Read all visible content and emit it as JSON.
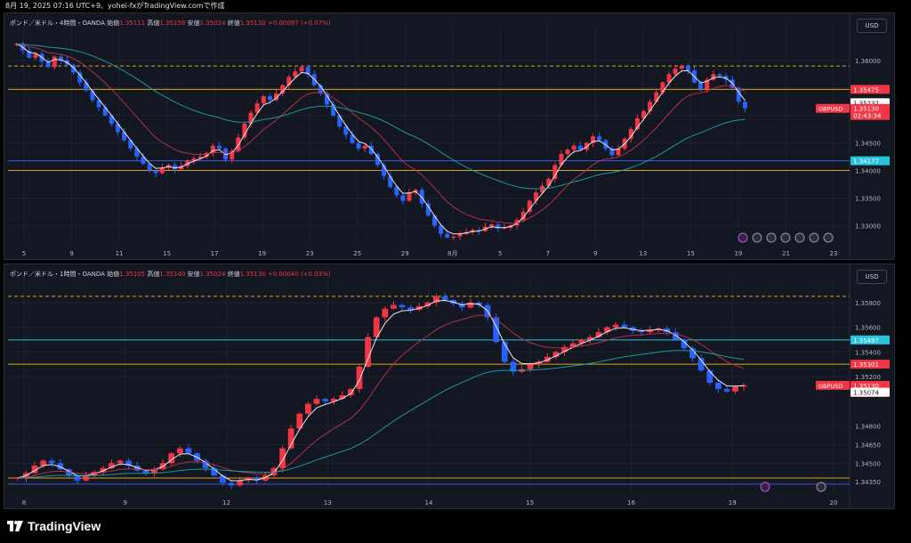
{
  "header": {
    "text": "8月 19, 2025 07:16 UTC+9、yohei-fxがTradingView.comで作成"
  },
  "footer": {
    "brand": "TradingView"
  },
  "colors": {
    "bg": "#131722",
    "up": "#f23645",
    "down": "#2962ff",
    "grid": "#1e222d",
    "ema_fast": "#ffffff",
    "ema_mid": "#c2334a",
    "ema_slow": "#1fa5a8",
    "level_orange": "#d9a21b",
    "level_blue": "#3a5bd9",
    "level_teal": "#26c6da",
    "label_red": "#f23645"
  },
  "panels": [
    {
      "legend": {
        "name": "ポンド／米ドル・4時間・OANDA",
        "open_label": "始値",
        "open": "1.35111",
        "high_label": "高値",
        "high": "1.35158",
        "low_label": "安値",
        "low": "1.35024",
        "close_label": "終値",
        "close": "1.35130",
        "change": "+0.00097 (+0.07%)"
      },
      "currency": "USD",
      "price_ticks": [
        "1.36000",
        "1.35500",
        "1.35000",
        "1.34500",
        "1.34000",
        "1.33500",
        "1.33000"
      ],
      "x_ticks": [
        "5",
        "9",
        "11",
        "15",
        "17",
        "19",
        "23",
        "25",
        "29",
        "8月",
        "5",
        "7",
        "9",
        "13",
        "15",
        "19",
        "21",
        "23"
      ],
      "price_labels": [
        {
          "text": "1.35475",
          "color": "#f23645"
        },
        {
          "text": "1.35232",
          "color": "#ffffff"
        },
        {
          "text": "1.35130",
          "sub": "02:43:34",
          "color": "#f23645",
          "tag": "GBPUSD"
        },
        {
          "text": "1.34177",
          "color": "#26c6da"
        }
      ],
      "ylim": [
        1.3265,
        1.365
      ]
    },
    {
      "legend": {
        "name": "ポンド／米ドル・1時間・OANDA",
        "open_label": "始値",
        "open": "1.35105",
        "high_label": "高値",
        "high": "1.35140",
        "low_label": "安値",
        "low": "1.35024",
        "close_label": "終値",
        "close": "1.35130",
        "change": "+0.00040 (+0.03%)"
      },
      "currency": "USD",
      "price_ticks": [
        "1.35800",
        "1.35600",
        "1.35400",
        "1.35200",
        "1.34800",
        "1.34650",
        "1.34500",
        "1.34350"
      ],
      "x_ticks": [
        "8",
        "9",
        "12",
        "13",
        "14",
        "15",
        "16",
        "19",
        "20"
      ],
      "price_labels": [
        {
          "text": "1.35497",
          "color": "#26c6da"
        },
        {
          "text": "1.35301",
          "color": "#f23645"
        },
        {
          "text": "1.35130",
          "sub": "43:34",
          "color": "#f23645",
          "tag": "GBPUSD"
        },
        {
          "text": "1.35074",
          "color": "#ffffff"
        }
      ],
      "ylim": [
        1.3425,
        1.3595
      ]
    }
  ],
  "chart_data": [
    {
      "type": "candlestick",
      "title": "ポンド／米ドル・4時間・OANDA",
      "ylim": [
        1.3265,
        1.365
      ],
      "closes": [
        1.363,
        1.3618,
        1.3605,
        1.3612,
        1.3598,
        1.3588,
        1.3607,
        1.36,
        1.3592,
        1.3578,
        1.356,
        1.3545,
        1.3528,
        1.3515,
        1.35,
        1.3485,
        1.347,
        1.3455,
        1.344,
        1.3425,
        1.3412,
        1.34,
        1.3395,
        1.3405,
        1.341,
        1.3402,
        1.3408,
        1.3418,
        1.3422,
        1.3425,
        1.3432,
        1.3445,
        1.344,
        1.342,
        1.3435,
        1.346,
        1.3485,
        1.3505,
        1.3522,
        1.3535,
        1.3528,
        1.354,
        1.3555,
        1.357,
        1.358,
        1.3588,
        1.3575,
        1.3555,
        1.354,
        1.352,
        1.35,
        1.348,
        1.3465,
        1.345,
        1.344,
        1.3445,
        1.343,
        1.341,
        1.339,
        1.337,
        1.3355,
        1.3345,
        1.336,
        1.3365,
        1.334,
        1.3318,
        1.33,
        1.3285,
        1.3278,
        1.328,
        1.3285,
        1.3288,
        1.3292,
        1.329,
        1.3298,
        1.3302,
        1.3295,
        1.3296,
        1.33,
        1.331,
        1.3325,
        1.3345,
        1.336,
        1.3372,
        1.3385,
        1.341,
        1.343,
        1.3438,
        1.3445,
        1.3438,
        1.345,
        1.3462,
        1.3455,
        1.344,
        1.3428,
        1.344,
        1.3458,
        1.3475,
        1.3495,
        1.3508,
        1.3525,
        1.3542,
        1.356,
        1.3575,
        1.3585,
        1.359,
        1.3582,
        1.356,
        1.3548,
        1.3565,
        1.3575,
        1.3572,
        1.3565,
        1.355,
        1.3525,
        1.3513
      ],
      "levels": [
        1.359,
        1.35475,
        1.34177,
        1.34
      ],
      "series": [
        "EMA fast",
        "EMA mid",
        "EMA slow"
      ]
    },
    {
      "type": "candlestick",
      "title": "ポンド／米ドル・1時間・OANDA",
      "ylim": [
        1.3425,
        1.3595
      ],
      "closes": [
        1.3438,
        1.3442,
        1.3448,
        1.3452,
        1.345,
        1.3445,
        1.344,
        1.3436,
        1.344,
        1.3443,
        1.3446,
        1.345,
        1.3452,
        1.3448,
        1.3444,
        1.3442,
        1.3445,
        1.345,
        1.3458,
        1.3462,
        1.3458,
        1.3452,
        1.3446,
        1.344,
        1.3434,
        1.3432,
        1.3436,
        1.3438,
        1.3436,
        1.344,
        1.3446,
        1.3462,
        1.3478,
        1.349,
        1.3498,
        1.3502,
        1.35,
        1.3502,
        1.3505,
        1.351,
        1.3528,
        1.3552,
        1.3568,
        1.3575,
        1.3578,
        1.3576,
        1.3574,
        1.3577,
        1.358,
        1.3585,
        1.3582,
        1.3579,
        1.3576,
        1.358,
        1.3578,
        1.3568,
        1.3548,
        1.3532,
        1.3524,
        1.3526,
        1.353,
        1.3532,
        1.3536,
        1.354,
        1.3544,
        1.3547,
        1.355,
        1.3552,
        1.3556,
        1.356,
        1.3562,
        1.356,
        1.3557,
        1.3556,
        1.3558,
        1.3559,
        1.3556,
        1.355,
        1.3543,
        1.3535,
        1.3525,
        1.3515,
        1.351,
        1.3508,
        1.3512,
        1.3513
      ],
      "levels": [
        1.3585,
        1.35497,
        1.35301,
        1.3438,
        1.3433
      ],
      "series": [
        "EMA fast",
        "EMA mid",
        "EMA slow"
      ]
    }
  ]
}
